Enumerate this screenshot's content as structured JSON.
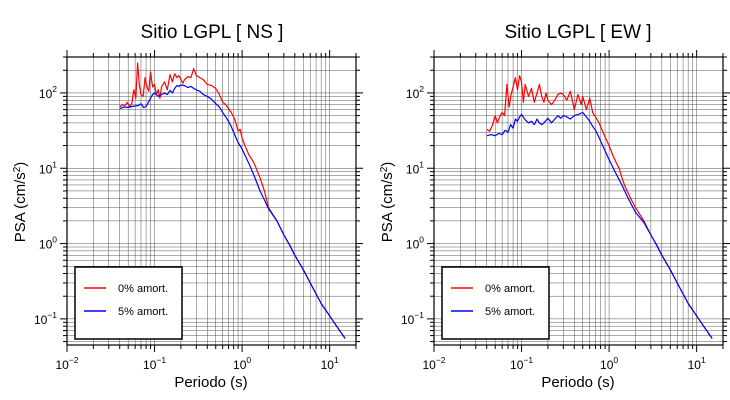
{
  "chart_data": [
    {
      "type": "line",
      "title": "Sitio LGPL [ NS ]",
      "xlabel": "Periodo (s)",
      "ylabel_main": "PSA (cm/s",
      "ylabel_sup": "2",
      "ylabel_tail": ")",
      "x_scale": "log",
      "y_scale": "log",
      "xlim": [
        0.01,
        20
      ],
      "ylim": [
        0.045,
        300
      ],
      "grid": true,
      "legend_position": "bottom-left",
      "x_ticks": [
        {
          "value": 0.01,
          "base": "10",
          "exp": "−2"
        },
        {
          "value": 0.1,
          "base": "10",
          "exp": "−1"
        },
        {
          "value": 1,
          "base": "10",
          "exp": "0"
        },
        {
          "value": 10,
          "base": "10",
          "exp": "1"
        }
      ],
      "y_ticks": [
        {
          "value": 0.1,
          "base": "10",
          "exp": "−1"
        },
        {
          "value": 1,
          "base": "10",
          "exp": "0"
        },
        {
          "value": 10,
          "base": "10",
          "exp": "1"
        },
        {
          "value": 100,
          "base": "10",
          "exp": "2"
        }
      ],
      "series": [
        {
          "name": "0% amort.",
          "color": "#ff0000",
          "x": [
            0.04,
            0.043,
            0.046,
            0.049,
            0.052,
            0.055,
            0.058,
            0.061,
            0.064,
            0.067,
            0.07,
            0.074,
            0.078,
            0.082,
            0.086,
            0.09,
            0.095,
            0.1,
            0.105,
            0.11,
            0.115,
            0.12,
            0.13,
            0.14,
            0.15,
            0.16,
            0.17,
            0.18,
            0.19,
            0.2,
            0.21,
            0.22,
            0.24,
            0.26,
            0.28,
            0.3,
            0.33,
            0.36,
            0.4,
            0.45,
            0.5,
            0.55,
            0.6,
            0.65,
            0.7,
            0.75,
            0.8,
            0.85,
            0.9,
            0.95,
            1.0,
            1.1,
            1.2,
            1.3,
            1.4,
            1.5,
            1.6,
            1.8,
            2.0,
            2.5,
            3.0,
            3.5,
            4.0,
            5.0,
            6.0,
            8.0,
            10.0,
            12.0,
            15.0
          ],
          "y": [
            65,
            70,
            68,
            75,
            66,
            72,
            110,
            85,
            250,
            130,
            95,
            90,
            160,
            120,
            105,
            190,
            120,
            130,
            95,
            110,
            85,
            120,
            140,
            110,
            175,
            140,
            180,
            160,
            170,
            150,
            135,
            150,
            165,
            160,
            210,
            170,
            160,
            150,
            130,
            125,
            115,
            95,
            75,
            70,
            62,
            55,
            48,
            40,
            31,
            33,
            25,
            19,
            15,
            13,
            11,
            9,
            7.5,
            5,
            3.0,
            2.0,
            1.3,
            0.95,
            0.7,
            0.45,
            0.3,
            0.16,
            0.11,
            0.08,
            0.055
          ]
        },
        {
          "name": "5% amort.",
          "color": "#0000ff",
          "x": [
            0.04,
            0.045,
            0.05,
            0.055,
            0.06,
            0.065,
            0.07,
            0.075,
            0.08,
            0.085,
            0.09,
            0.095,
            0.1,
            0.11,
            0.12,
            0.13,
            0.14,
            0.15,
            0.16,
            0.17,
            0.18,
            0.19,
            0.2,
            0.22,
            0.24,
            0.26,
            0.28,
            0.3,
            0.33,
            0.36,
            0.4,
            0.45,
            0.5,
            0.55,
            0.6,
            0.65,
            0.7,
            0.75,
            0.8,
            0.9,
            1.0,
            1.2,
            1.4,
            1.6,
            1.8,
            2.0,
            2.5,
            3.0,
            3.5,
            4.0,
            5.0,
            6.0,
            8.0,
            10.0,
            12.0,
            15.0
          ],
          "y": [
            62,
            65,
            64,
            66,
            67,
            68,
            72,
            64,
            66,
            75,
            85,
            95,
            100,
            90,
            95,
            100,
            95,
            108,
            100,
            115,
            125,
            122,
            128,
            125,
            118,
            122,
            115,
            110,
            105,
            95,
            90,
            82,
            72,
            65,
            55,
            48,
            42,
            36,
            30,
            22,
            18,
            11.5,
            7.5,
            5.0,
            3.8,
            2.9,
            2.0,
            1.3,
            0.95,
            0.7,
            0.45,
            0.3,
            0.16,
            0.11,
            0.08,
            0.055
          ]
        }
      ]
    },
    {
      "type": "line",
      "title": "Sitio LGPL [ EW ]",
      "xlabel": "Periodo (s)",
      "ylabel_main": "PSA (cm/s",
      "ylabel_sup": "2",
      "ylabel_tail": ")",
      "x_scale": "log",
      "y_scale": "log",
      "xlim": [
        0.01,
        20
      ],
      "ylim": [
        0.045,
        300
      ],
      "grid": true,
      "legend_position": "bottom-left",
      "x_ticks": [
        {
          "value": 0.01,
          "base": "10",
          "exp": "−2"
        },
        {
          "value": 0.1,
          "base": "10",
          "exp": "−1"
        },
        {
          "value": 1,
          "base": "10",
          "exp": "0"
        },
        {
          "value": 10,
          "base": "10",
          "exp": "1"
        }
      ],
      "y_ticks": [
        {
          "value": 0.1,
          "base": "10",
          "exp": "−1"
        },
        {
          "value": 1,
          "base": "10",
          "exp": "0"
        },
        {
          "value": 10,
          "base": "10",
          "exp": "1"
        },
        {
          "value": 100,
          "base": "10",
          "exp": "2"
        }
      ],
      "series": [
        {
          "name": "0% amort.",
          "color": "#ff0000",
          "x": [
            0.04,
            0.043,
            0.046,
            0.05,
            0.053,
            0.056,
            0.06,
            0.064,
            0.068,
            0.072,
            0.076,
            0.08,
            0.085,
            0.09,
            0.095,
            0.1,
            0.105,
            0.11,
            0.12,
            0.13,
            0.14,
            0.15,
            0.16,
            0.17,
            0.18,
            0.19,
            0.2,
            0.22,
            0.24,
            0.26,
            0.28,
            0.3,
            0.33,
            0.36,
            0.4,
            0.44,
            0.48,
            0.5,
            0.55,
            0.6,
            0.65,
            0.7,
            0.75,
            0.8,
            0.85,
            0.9,
            1.0,
            1.1,
            1.2,
            1.3,
            1.4,
            1.5,
            1.6,
            1.8,
            2.0,
            2.5,
            3.0,
            3.5,
            4.0,
            5.0,
            6.0,
            8.0,
            10.0,
            12.0,
            15.0
          ],
          "y": [
            33,
            31,
            36,
            50,
            40,
            48,
            55,
            50,
            130,
            65,
            95,
            120,
            160,
            110,
            170,
            140,
            75,
            130,
            90,
            115,
            75,
            100,
            130,
            90,
            75,
            100,
            80,
            70,
            80,
            95,
            100,
            95,
            80,
            105,
            60,
            95,
            70,
            90,
            60,
            85,
            55,
            48,
            42,
            36,
            30,
            26,
            20,
            15,
            12,
            10,
            7.5,
            6.0,
            5.0,
            3.8,
            3.0,
            2.0,
            1.3,
            0.95,
            0.7,
            0.45,
            0.3,
            0.16,
            0.11,
            0.08,
            0.055
          ]
        },
        {
          "name": "5% amort.",
          "color": "#0000ff",
          "x": [
            0.04,
            0.045,
            0.05,
            0.055,
            0.06,
            0.065,
            0.07,
            0.075,
            0.08,
            0.085,
            0.09,
            0.095,
            0.1,
            0.11,
            0.12,
            0.13,
            0.14,
            0.15,
            0.16,
            0.17,
            0.18,
            0.2,
            0.22,
            0.24,
            0.26,
            0.28,
            0.3,
            0.33,
            0.36,
            0.4,
            0.45,
            0.5,
            0.55,
            0.6,
            0.65,
            0.7,
            0.75,
            0.8,
            0.9,
            1.0,
            1.2,
            1.4,
            1.6,
            1.8,
            2.0,
            2.5,
            3.0,
            3.5,
            4.0,
            5.0,
            6.0,
            8.0,
            10.0,
            12.0,
            15.0
          ],
          "y": [
            27,
            28,
            27,
            29,
            28,
            32,
            30,
            38,
            34,
            45,
            42,
            48,
            52,
            44,
            40,
            42,
            38,
            45,
            40,
            38,
            40,
            46,
            40,
            45,
            50,
            46,
            50,
            48,
            45,
            50,
            52,
            55,
            48,
            42,
            36,
            32,
            27,
            23,
            17,
            13,
            8.5,
            6.0,
            4.3,
            3.3,
            2.6,
            1.9,
            1.3,
            0.95,
            0.7,
            0.45,
            0.3,
            0.16,
            0.11,
            0.08,
            0.055
          ]
        }
      ]
    }
  ]
}
